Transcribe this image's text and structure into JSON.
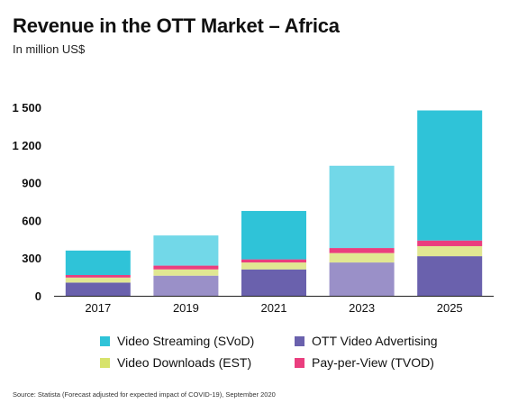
{
  "title": "Revenue in the OTT Market – Africa",
  "subtitle": "In million US$",
  "source": "Source: Statista (Forecast adjusted for expected impact of COVID-19), September 2020",
  "colors": {
    "svod_dark": "#2fc3d8",
    "svod_light": "#72d8e8",
    "advertising_dark": "#6a61ad",
    "advertising_light": "#9a90c8",
    "est": "#e1e792",
    "tvod": "#ea3e7e",
    "axis": "#222222"
  },
  "legend": [
    {
      "key": "svod",
      "label": "Video Streaming (SVoD)",
      "color": "#2fc3d8"
    },
    {
      "key": "advertising",
      "label": "OTT Video Advertising",
      "color": "#6a61ad"
    },
    {
      "key": "est",
      "label": "Video Downloads (EST)",
      "color": "#d7e36b"
    },
    {
      "key": "tvod",
      "label": "Pay-per-View (TVOD)",
      "color": "#ea3e7e"
    }
  ],
  "chart_data": {
    "type": "bar",
    "stacked": true,
    "title": "Revenue in the OTT Market – Africa",
    "subtitle": "In million US$",
    "categories": [
      "2017",
      "2019",
      "2021",
      "2023",
      "2025"
    ],
    "series": [
      {
        "name": "OTT Video Advertising",
        "values": [
          105,
          160,
          210,
          265,
          315
        ]
      },
      {
        "name": "Video Downloads (EST)",
        "values": [
          40,
          50,
          55,
          75,
          80
        ]
      },
      {
        "name": "Pay-per-View (TVOD)",
        "values": [
          20,
          30,
          25,
          40,
          45
        ]
      },
      {
        "name": "Video Streaming (SVoD)",
        "values": [
          195,
          240,
          385,
          655,
          1035
        ]
      }
    ],
    "yticks": [
      "0",
      "300",
      "600",
      "900",
      "1 200",
      "1 500"
    ],
    "ytick_values": [
      0,
      300,
      600,
      900,
      1200,
      1500
    ],
    "ylim": [
      0,
      1500
    ],
    "grid": false,
    "legend_position": "bottom"
  }
}
